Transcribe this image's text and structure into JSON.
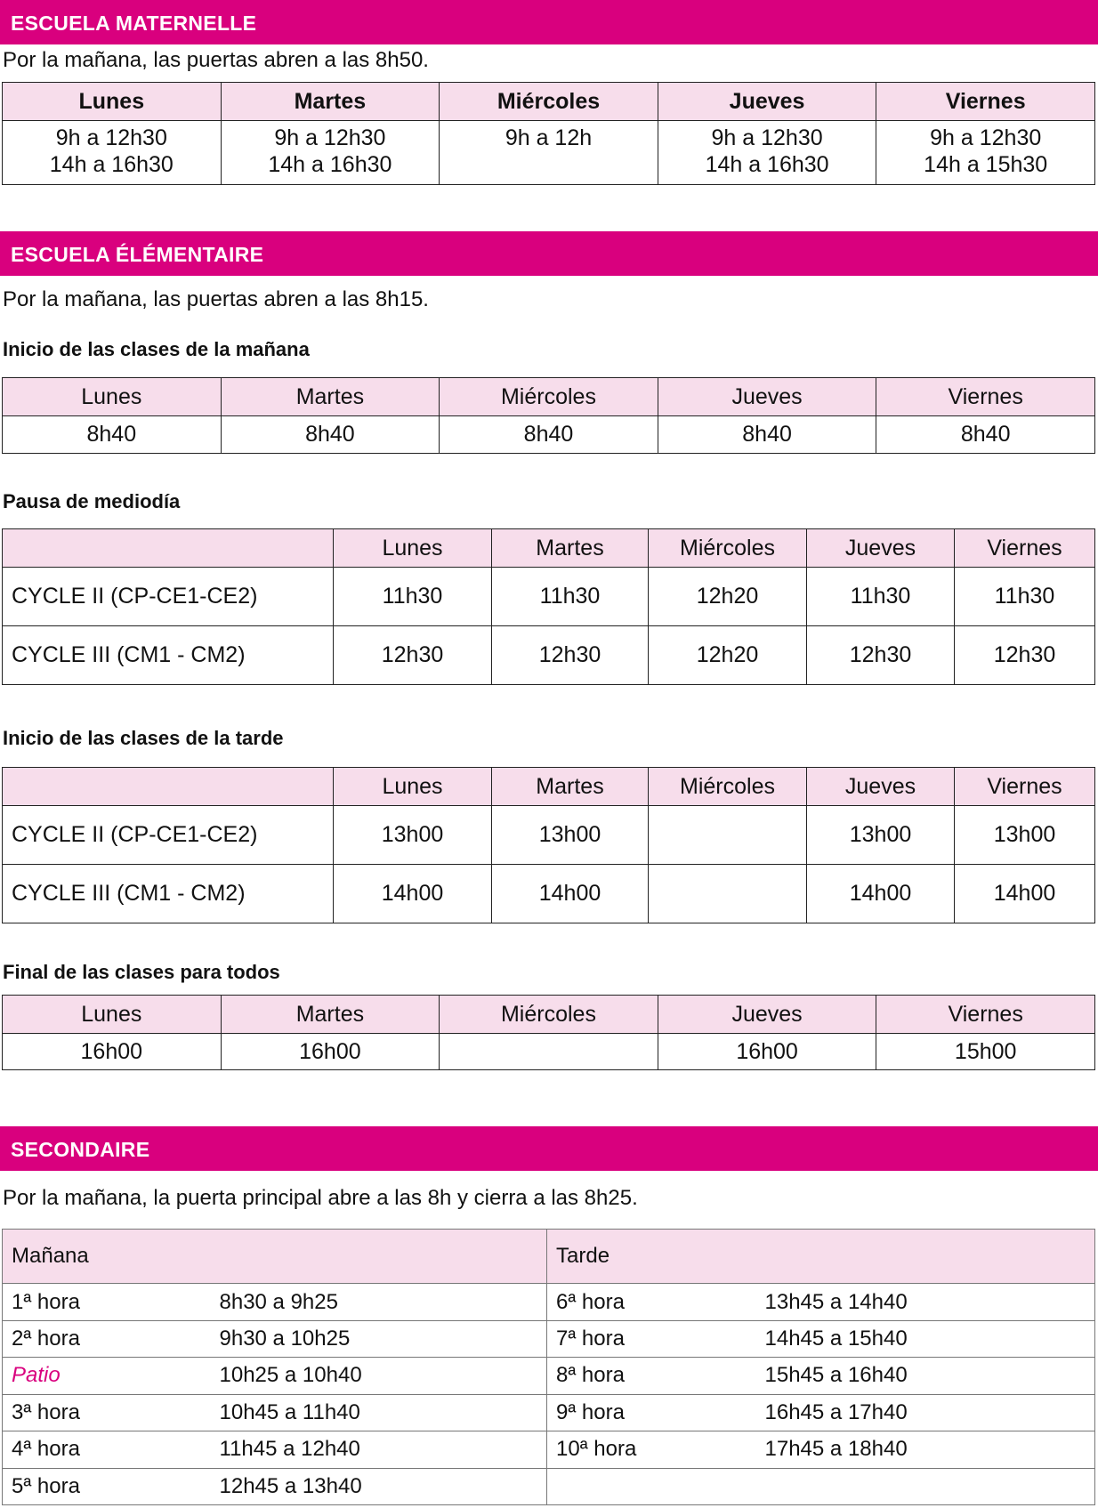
{
  "colors": {
    "accent": "#D9007E",
    "header_fill": "#F7DDEB"
  },
  "maternelle": {
    "title": "ESCUELA MATERNELLE",
    "note": "Por la mañana, las puertas abren a las 8h50.",
    "days": [
      "Lunes",
      "Martes",
      "Miércoles",
      "Jueves",
      "Viernes"
    ],
    "line1": [
      "9h a 12h30",
      "9h a 12h30",
      "9h a 12h",
      "9h a 12h30",
      "9h a 12h30"
    ],
    "line2": [
      "14h a 16h30",
      "14h a 16h30",
      "",
      "14h a 16h30",
      "14h a 15h30"
    ]
  },
  "elementaire": {
    "title": "ESCUELA ÉLÉMENTAIRE",
    "note": "Por la mañana, las puertas abren a las 8h15.",
    "morning": {
      "title": "Inicio de las clases de la mañana",
      "days": [
        "Lunes",
        "Martes",
        "Miércoles",
        "Jueves",
        "Viernes"
      ],
      "values": [
        "8h40",
        "8h40",
        "8h40",
        "8h40",
        "8h40"
      ]
    },
    "midday": {
      "title": "Pausa de mediodía",
      "days": [
        "Lunes",
        "Martes",
        "Miércoles",
        "Jueves",
        "Viernes"
      ],
      "rows": [
        {
          "label": "CYCLE II (CP-CE1-CE2)",
          "values": [
            "11h30",
            "11h30",
            "12h20",
            "11h30",
            "11h30"
          ]
        },
        {
          "label": "CYCLE III (CM1 - CM2)",
          "values": [
            "12h30",
            "12h30",
            "12h20",
            "12h30",
            "12h30"
          ]
        }
      ]
    },
    "afternoon": {
      "title": "Inicio de las clases de la tarde",
      "days": [
        "Lunes",
        "Martes",
        "Miércoles",
        "Jueves",
        "Viernes"
      ],
      "rows": [
        {
          "label": "CYCLE II (CP-CE1-CE2)",
          "values": [
            "13h00",
            "13h00",
            "",
            "13h00",
            "13h00"
          ]
        },
        {
          "label": "CYCLE III (CM1 - CM2)",
          "values": [
            "14h00",
            "14h00",
            "",
            "14h00",
            "14h00"
          ]
        }
      ]
    },
    "end": {
      "title": "Final de las clases para todos",
      "days": [
        "Lunes",
        "Martes",
        "Miércoles",
        "Jueves",
        "Viernes"
      ],
      "values": [
        "16h00",
        "16h00",
        "",
        "16h00",
        "15h00"
      ]
    }
  },
  "secondaire": {
    "title": "SECONDAIRE",
    "note": "Por la mañana, la puerta principal abre a las 8h y cierra a las 8h25.",
    "morning_label": "Mañana",
    "afternoon_label": "Tarde",
    "morning": [
      {
        "n": "1ª hora",
        "t": "8h30 a 9h25"
      },
      {
        "n": "2ª hora",
        "t": "9h30 a 10h25"
      },
      {
        "n": "Patio",
        "t": "10h25 a 10h40"
      },
      {
        "n": "3ª hora",
        "t": "10h45 a 11h40"
      },
      {
        "n": "4ª hora",
        "t": "11h45 a 12h40"
      },
      {
        "n": "5ª hora",
        "t": "12h45 a 13h40"
      }
    ],
    "afternoon": [
      {
        "n": "6ª hora",
        "t": "13h45 a 14h40"
      },
      {
        "n": "7ª hora",
        "t": "14h45 a 15h40"
      },
      {
        "n": "8ª hora",
        "t": "15h45 a 16h40"
      },
      {
        "n": "9ª hora",
        "t": "16h45 a 17h40"
      },
      {
        "n": "10ª hora",
        "t": "17h45 a 18h40"
      },
      {
        "n": "",
        "t": ""
      }
    ]
  }
}
